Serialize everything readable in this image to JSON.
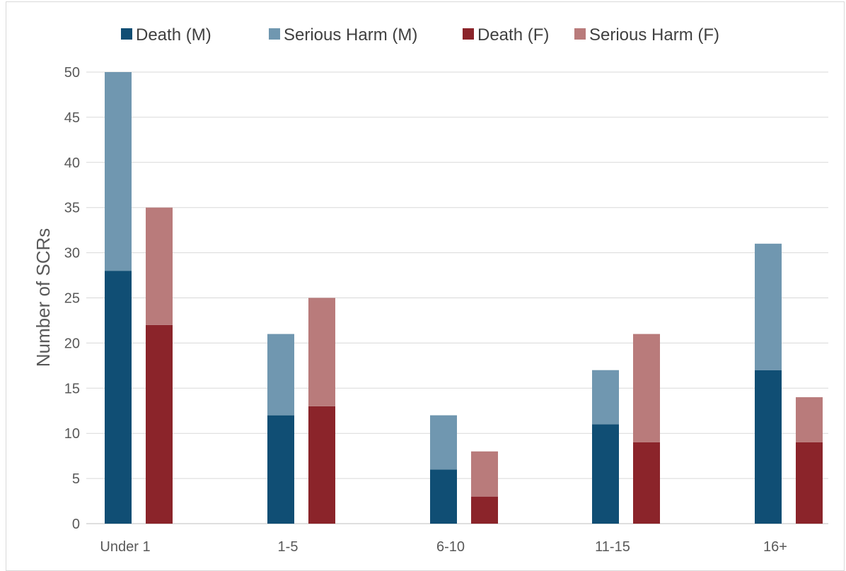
{
  "chart_data": {
    "type": "bar",
    "stacked": true,
    "title": "",
    "xlabel": "",
    "ylabel": "Number of SCRs",
    "ylim": [
      0,
      50
    ],
    "yticks": [
      0,
      5,
      10,
      15,
      20,
      25,
      30,
      35,
      40,
      45,
      50
    ],
    "grid": true,
    "legend_position": "top",
    "categories": [
      "Under 1",
      "1-5",
      "6-10",
      "11-15",
      "16+"
    ],
    "groups": [
      {
        "name": "M",
        "segments": [
          {
            "name": "Death (M)",
            "color": "#104e74",
            "values": [
              28,
              12,
              6,
              11,
              17
            ]
          },
          {
            "name": "Serious Harm (M)",
            "color": "#7097b0",
            "values": [
              22,
              9,
              6,
              6,
              14
            ]
          }
        ]
      },
      {
        "name": "F",
        "segments": [
          {
            "name": "Death (F)",
            "color": "#8b242a",
            "values": [
              22,
              13,
              3,
              9,
              9
            ]
          },
          {
            "name": "Serious Harm (F)",
            "color": "#b97b7b",
            "values": [
              13,
              12,
              5,
              12,
              5
            ]
          }
        ]
      }
    ],
    "legend": [
      {
        "label": "Death (M)",
        "color": "#104e74"
      },
      {
        "label": "Serious Harm (M)",
        "color": "#7097b0"
      },
      {
        "label": "Death (F)",
        "color": "#8b242a"
      },
      {
        "label": "Serious Harm (F)",
        "color": "#b97b7b"
      }
    ]
  }
}
